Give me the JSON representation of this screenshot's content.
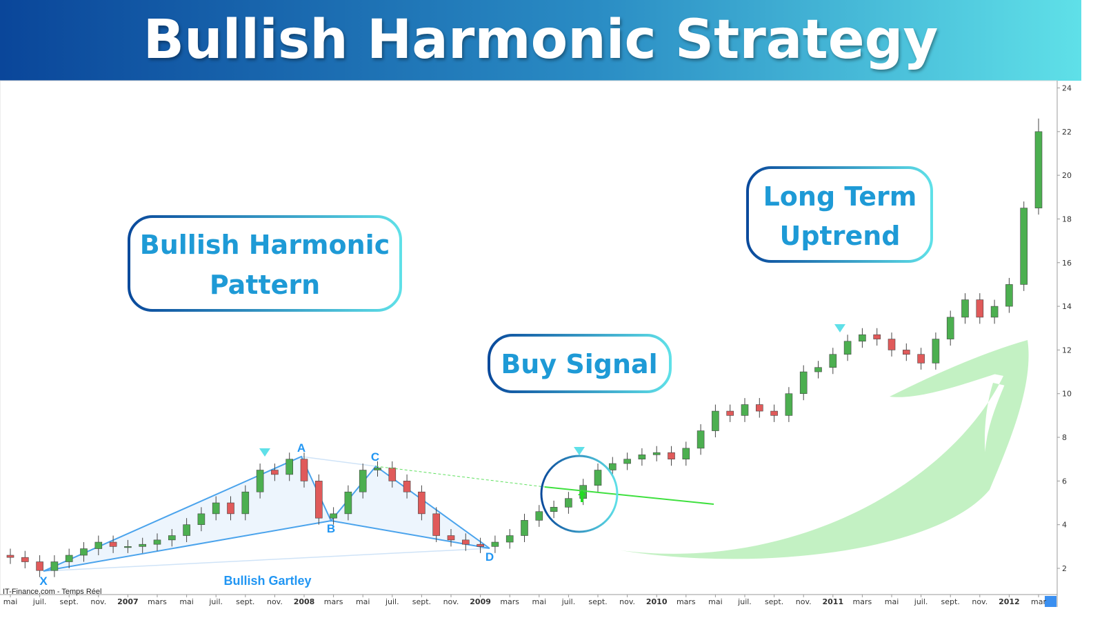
{
  "header": {
    "title": "Bullish Harmonic Strategy"
  },
  "chart_data": {
    "type": "candlestick",
    "source": "IT-Finance.com - Temps Réel",
    "categories": [
      "mai",
      null,
      "juil.",
      null,
      "sept.",
      null,
      "nov.",
      null,
      "2007",
      null,
      "mars",
      null,
      "mai",
      null,
      "juil.",
      null,
      "sept.",
      null,
      "nov.",
      null,
      "2008",
      null,
      "mars",
      null,
      "mai",
      null,
      "juil.",
      null,
      "sept.",
      null,
      "nov.",
      null,
      "2009",
      null,
      "mars",
      null,
      "mai",
      null,
      "juil.",
      null,
      "sept.",
      null,
      "nov.",
      null,
      "2010",
      null,
      "mars",
      null,
      "mai",
      null,
      "juil.",
      null,
      "sept.",
      null,
      "nov.",
      null,
      "2011",
      null,
      "mars",
      null,
      "mai",
      null,
      "juil.",
      null,
      "sept.",
      null,
      "nov.",
      null,
      "2012",
      null,
      "mar"
    ],
    "open": [
      2.6,
      2.5,
      2.3,
      1.9,
      2.3,
      2.6,
      2.9,
      3.2,
      3.0,
      3.0,
      3.1,
      3.3,
      3.5,
      4.0,
      4.5,
      5.0,
      4.5,
      5.5,
      6.5,
      6.3,
      7.0,
      6.0,
      4.3,
      4.5,
      5.5,
      6.5,
      6.6,
      6.0,
      5.5,
      4.5,
      3.5,
      3.3,
      3.1,
      3.0,
      3.2,
      3.5,
      4.2,
      4.6,
      4.8,
      5.2,
      5.8,
      6.5,
      6.8,
      7.0,
      7.2,
      7.3,
      7.0,
      7.5,
      8.3,
      9.2,
      9.0,
      9.5,
      9.2,
      9.0,
      10.0,
      11.0,
      11.2,
      11.8,
      12.4,
      12.7,
      12.5,
      12.0,
      11.8,
      11.4,
      12.5,
      13.5,
      14.3,
      13.5,
      14.0,
      15.0,
      18.5
    ],
    "high": [
      2.9,
      2.8,
      2.6,
      2.6,
      2.9,
      3.2,
      3.5,
      3.5,
      3.3,
      3.4,
      3.6,
      3.8,
      4.3,
      4.8,
      5.3,
      5.3,
      5.8,
      6.8,
      6.8,
      7.3,
      7.3,
      6.3,
      4.8,
      5.8,
      6.8,
      6.9,
      6.9,
      6.3,
      5.8,
      4.8,
      3.8,
      3.6,
      3.4,
      3.5,
      3.8,
      4.5,
      4.9,
      5.1,
      5.5,
      6.1,
      6.8,
      7.1,
      7.3,
      7.5,
      7.6,
      7.6,
      7.8,
      8.6,
      9.5,
      9.5,
      9.8,
      9.8,
      9.5,
      10.3,
      11.3,
      11.5,
      12.1,
      12.7,
      13.0,
      13.0,
      12.8,
      12.3,
      12.1,
      12.8,
      13.8,
      14.6,
      14.6,
      14.3,
      15.3,
      18.8,
      22.6
    ],
    "low": [
      2.2,
      2.0,
      1.6,
      1.6,
      2.0,
      2.3,
      2.6,
      2.7,
      2.7,
      2.7,
      2.8,
      3.0,
      3.2,
      3.7,
      4.2,
      4.2,
      4.2,
      5.2,
      6.0,
      6.0,
      5.7,
      4.0,
      4.0,
      4.2,
      5.2,
      6.2,
      5.7,
      5.2,
      4.2,
      3.2,
      3.0,
      2.8,
      2.7,
      2.7,
      2.9,
      3.2,
      3.9,
      4.3,
      4.5,
      4.9,
      5.5,
      6.2,
      6.5,
      6.7,
      6.9,
      6.7,
      6.7,
      7.2,
      8.0,
      8.7,
      8.7,
      8.9,
      8.7,
      8.7,
      9.7,
      10.7,
      10.9,
      11.5,
      12.1,
      12.2,
      11.7,
      11.5,
      11.1,
      11.1,
      12.2,
      13.2,
      13.2,
      13.2,
      13.7,
      14.7,
      18.2
    ],
    "close": [
      2.5,
      2.3,
      1.9,
      2.3,
      2.6,
      2.9,
      3.2,
      3.0,
      3.0,
      3.1,
      3.3,
      3.5,
      4.0,
      4.5,
      5.0,
      4.5,
      5.5,
      6.5,
      6.3,
      7.0,
      6.0,
      4.3,
      4.5,
      5.5,
      6.5,
      6.6,
      6.0,
      5.5,
      4.5,
      3.5,
      3.3,
      3.1,
      3.0,
      3.2,
      3.5,
      4.2,
      4.6,
      4.8,
      5.2,
      5.8,
      6.5,
      6.8,
      7.0,
      7.2,
      7.3,
      7.0,
      7.5,
      8.3,
      9.2,
      9.0,
      9.5,
      9.2,
      9.0,
      10.0,
      11.0,
      11.2,
      11.8,
      12.4,
      12.7,
      12.5,
      12.0,
      11.8,
      11.4,
      12.5,
      13.5,
      14.3,
      13.5,
      14.0,
      15.0,
      18.5,
      22.0
    ],
    "up_color": "#4caf50",
    "down_color": "#e05a5a",
    "ylim": [
      0.8,
      24.3
    ],
    "yticks": [
      2,
      4,
      6,
      8,
      10,
      12,
      14,
      16,
      18,
      20,
      22,
      24
    ],
    "annotations": {
      "pattern_points": [
        "X",
        "A",
        "B",
        "C",
        "D"
      ],
      "pattern_name": "Bullish Gartley",
      "callouts": [
        [
          "Bullish Harmonic",
          "Pattern"
        ],
        [
          "Buy Signal"
        ],
        [
          "Long Term",
          "Uptrend"
        ]
      ]
    }
  }
}
